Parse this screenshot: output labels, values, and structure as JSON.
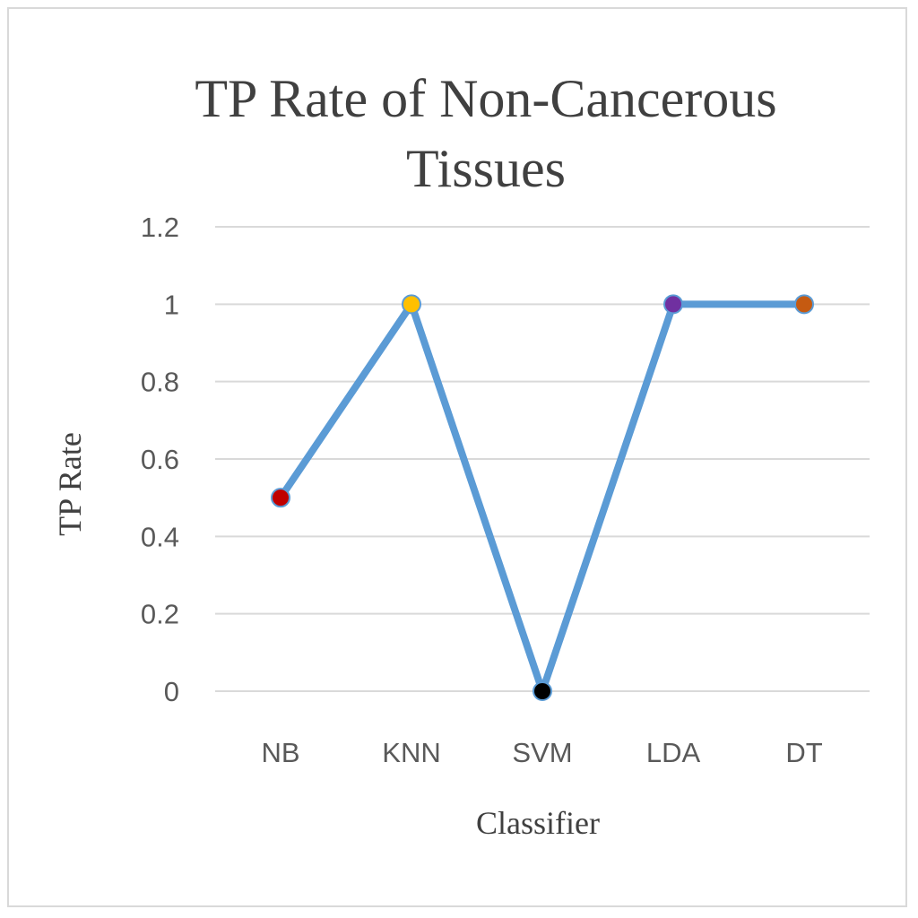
{
  "chart_data": {
    "type": "line",
    "title_lines": [
      "TP Rate of Non-Cancerous",
      "Tissues"
    ],
    "xlabel": "Classifier",
    "ylabel": "TP Rate",
    "categories": [
      "NB",
      "KNN",
      "SVM",
      "LDA",
      "DT"
    ],
    "values": [
      0.5,
      1,
      0,
      1,
      1
    ],
    "ylim": [
      0,
      1.2
    ],
    "yticks": [
      {
        "value": 0,
        "label": "0"
      },
      {
        "value": 0.2,
        "label": "0.2"
      },
      {
        "value": 0.4,
        "label": "0.4"
      },
      {
        "value": 0.6,
        "label": "0.6"
      },
      {
        "value": 0.8,
        "label": "0.8"
      },
      {
        "value": 1,
        "label": "1"
      },
      {
        "value": 1.2,
        "label": "1.2"
      }
    ],
    "grid": true,
    "legend": "none",
    "line_color": "#5b9bd5",
    "gridline_color": "#d9d9d9",
    "marker_colors": [
      "#c00000",
      "#ffc000",
      "#000000",
      "#7030a0",
      "#c55a11"
    ]
  }
}
